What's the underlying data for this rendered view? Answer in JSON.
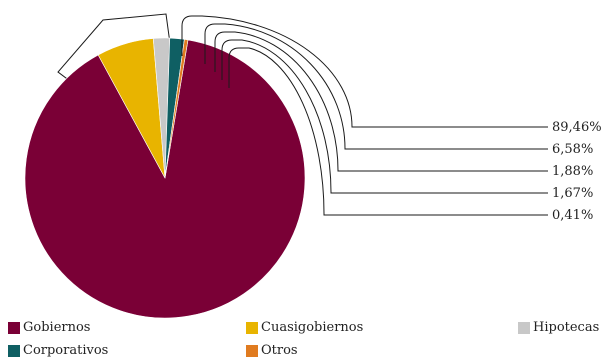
{
  "chart_data": {
    "type": "pie",
    "categories": [
      "Gobiernos",
      "Cuasigobiernos",
      "Hipotecas",
      "Corporativos",
      "Otros"
    ],
    "values": [
      89.46,
      6.58,
      1.88,
      1.67,
      0.41
    ],
    "data_labels": [
      "89,46%",
      "6,58%",
      "1,88%",
      "1,67%",
      "0,41%"
    ],
    "colors": [
      "#7a0036",
      "#e8b400",
      "#c8c8c8",
      "#0f5f63",
      "#e07b20"
    ],
    "title": "",
    "legend_position": "bottom"
  },
  "legend": {
    "items": [
      {
        "label": "Gobiernos",
        "color": "#7a0036"
      },
      {
        "label": "Cuasigobiernos",
        "color": "#e8b400"
      },
      {
        "label": "Hipotecas",
        "color": "#c8c8c8"
      },
      {
        "label": "Corporativos",
        "color": "#0f5f63"
      },
      {
        "label": "Otros",
        "color": "#e07b20"
      }
    ]
  }
}
